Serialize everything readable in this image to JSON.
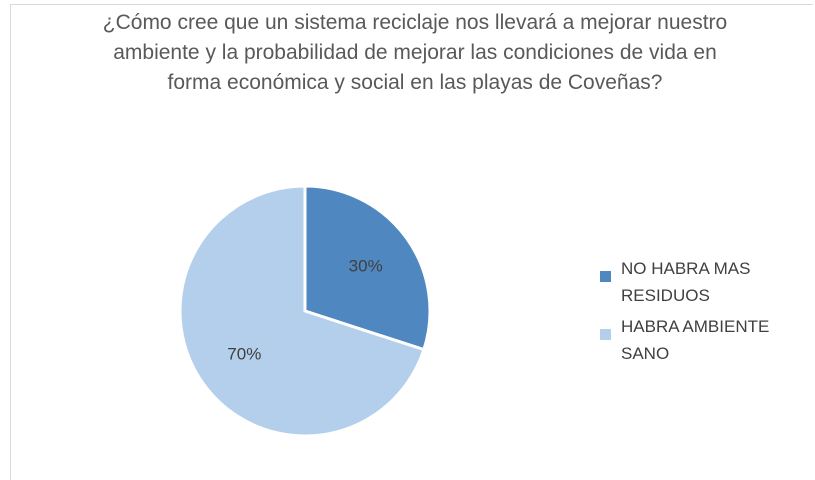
{
  "chart_data": {
    "type": "pie",
    "title": "¿Cómo cree que un sistema reciclaje nos llevará a mejorar nuestro ambiente y la probabilidad de mejorar las condiciones de vida en forma económica y social en las playas de Coveñas?",
    "categories": [
      "NO HABRA MAS RESIDUOS",
      "HABRA AMBIENTE SANO"
    ],
    "values": [
      30,
      70
    ],
    "value_labels": [
      "30%",
      "70%"
    ],
    "colors": [
      "#4f87c1",
      "#b4cfeb"
    ],
    "legend": "right"
  }
}
